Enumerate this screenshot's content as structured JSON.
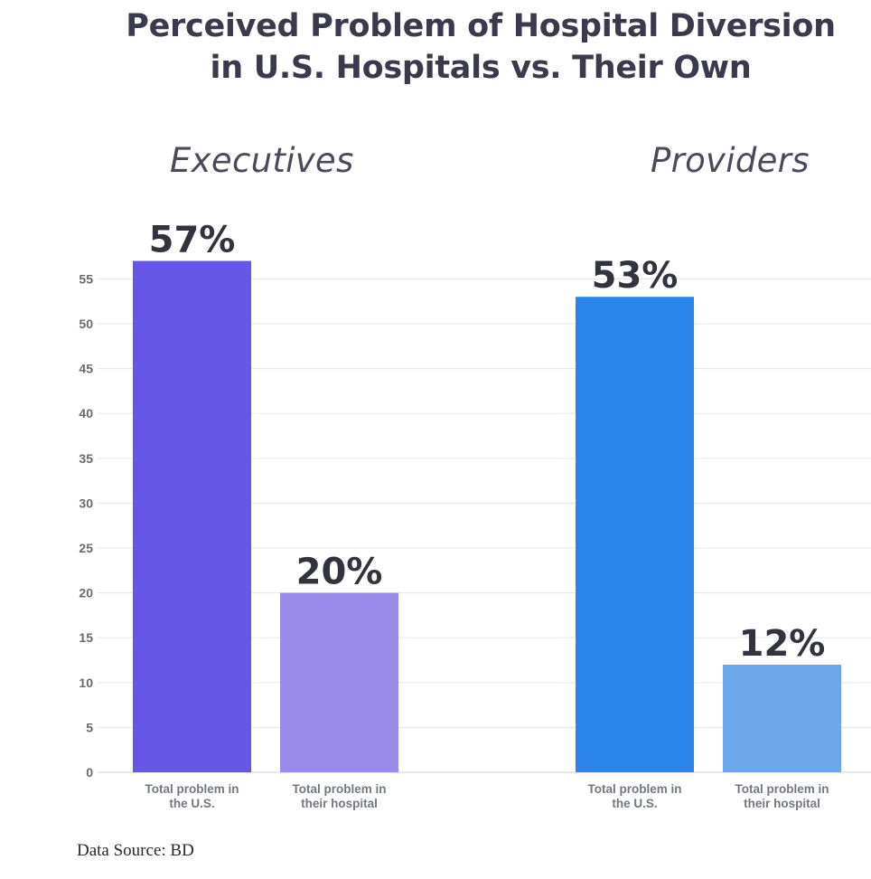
{
  "chart_data": {
    "type": "bar",
    "title_lines": [
      "Perceived Problem of Hospital Diversion",
      "in U.S. Hospitals vs. Their Own"
    ],
    "groups": [
      {
        "name": "Executives",
        "bars": [
          {
            "label_lines": [
              "Total problem in",
              "the U.S."
            ],
            "value": 57,
            "data_label": "57%",
            "color": "#6656e8"
          },
          {
            "label_lines": [
              "Total problem in",
              "their hospital"
            ],
            "value": 20,
            "data_label": "20%",
            "color": "#9a8ae9"
          }
        ]
      },
      {
        "name": "Providers",
        "bars": [
          {
            "label_lines": [
              "Total problem in",
              "the U.S."
            ],
            "value": 53,
            "data_label": "53%",
            "color": "#2a86ea"
          },
          {
            "label_lines": [
              "Total problem in",
              "their hospital"
            ],
            "value": 12,
            "data_label": "12%",
            "color": "#6ea6ec"
          }
        ]
      }
    ],
    "y_ticks": [
      0,
      5,
      10,
      15,
      20,
      25,
      30,
      35,
      40,
      45,
      50,
      55
    ],
    "ylim": [
      0,
      55
    ],
    "xlabel": "",
    "ylabel": "",
    "grid": true
  },
  "source": "Data Source: BD"
}
